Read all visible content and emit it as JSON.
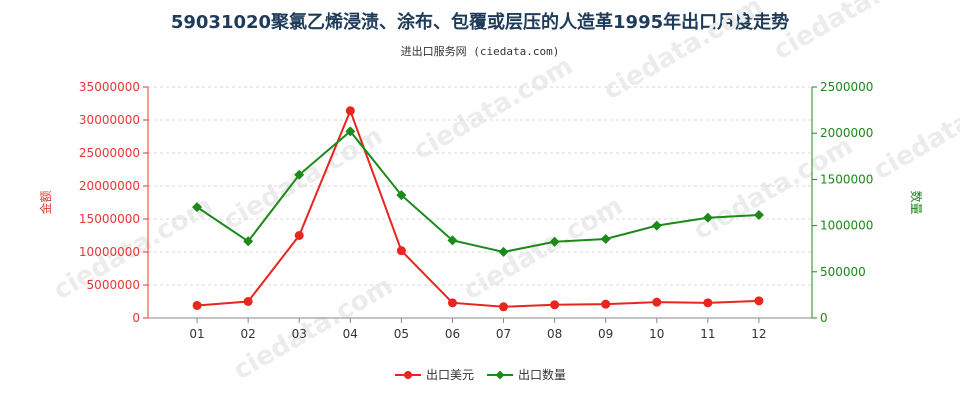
{
  "title": "59031020聚氯乙烯浸渍、涂布、包覆或层压的人造革1995年出口月度走势",
  "subtitle": "进出口服务网 (ciedata.com)",
  "watermark": "ciedata.com",
  "colors": {
    "left_axis": "#e53935",
    "right_axis": "#1a8a1a",
    "series_usd": "#e8251f",
    "series_qty": "#1b8a1b"
  },
  "chart_data": {
    "type": "line",
    "categories": [
      "01",
      "02",
      "03",
      "04",
      "05",
      "06",
      "07",
      "08",
      "09",
      "10",
      "11",
      "12"
    ],
    "y_left": {
      "label": "金额",
      "range": [
        0,
        35000000
      ],
      "ticks": [
        "0",
        "5000000",
        "10000000",
        "15000000",
        "20000000",
        "25000000",
        "30000000",
        "35000000"
      ]
    },
    "y_right": {
      "label": "数量",
      "range": [
        0,
        2500000
      ],
      "ticks": [
        "0",
        "500000",
        "1000000",
        "1500000",
        "2000000",
        "2500000"
      ]
    },
    "series": [
      {
        "name": "出口美元",
        "axis": "left",
        "values": [
          1900000,
          2500000,
          12500000,
          31400000,
          10200000,
          2300000,
          1700000,
          2000000,
          2100000,
          2400000,
          2300000,
          2600000
        ]
      },
      {
        "name": "出口数量",
        "axis": "right",
        "values": [
          1200000,
          830000,
          1550000,
          2020000,
          1330000,
          840000,
          715000,
          825000,
          855000,
          1000000,
          1085000,
          1115000
        ]
      }
    ],
    "legend_position": "bottom",
    "grid": "horizontal"
  }
}
